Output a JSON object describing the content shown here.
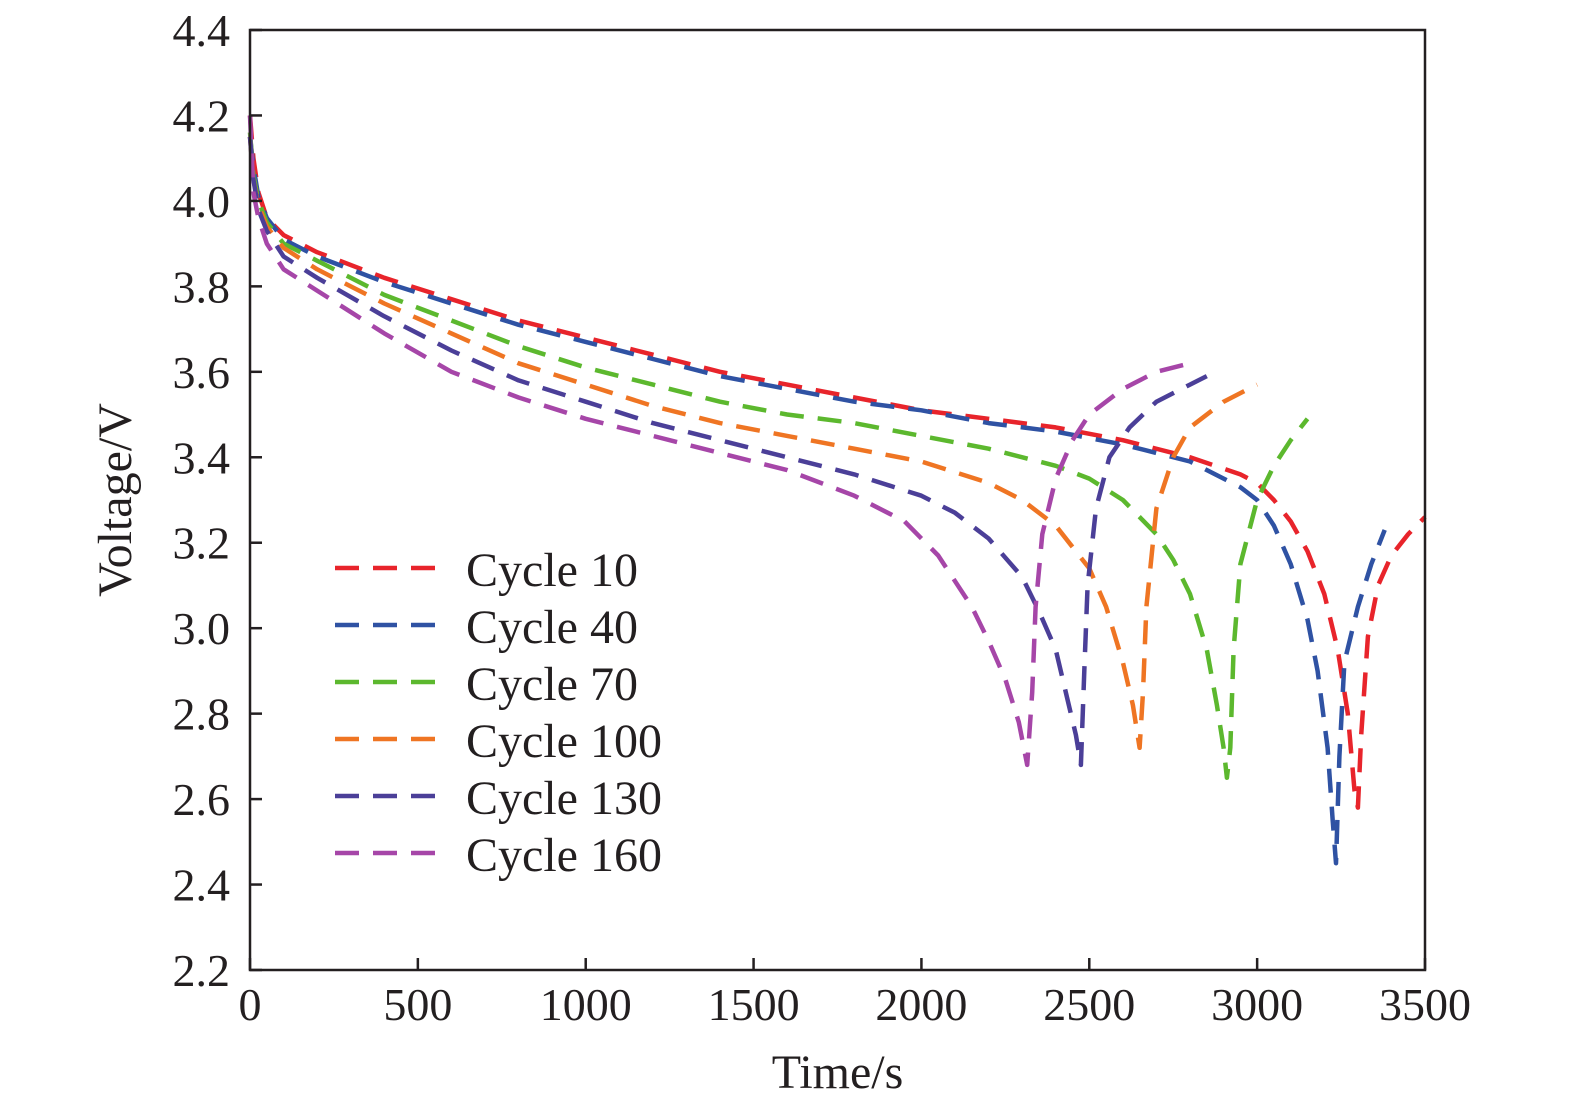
{
  "chart_data": {
    "type": "line",
    "xlabel": "Time/s",
    "ylabel": "Voltage/V",
    "xlim": [
      0,
      3500
    ],
    "ylim": [
      2.2,
      4.4
    ],
    "xticks": [
      0,
      500,
      1000,
      1500,
      2000,
      2500,
      3000,
      3500
    ],
    "xtick_labels": [
      "0",
      "500",
      "1000",
      "1500",
      "2000",
      "2500",
      "3000",
      "3500"
    ],
    "yticks": [
      2.2,
      2.4,
      2.6,
      2.8,
      3.0,
      3.2,
      3.4,
      3.6,
      3.8,
      4.0,
      4.2,
      4.4
    ],
    "ytick_labels": [
      "2.2",
      "2.4",
      "2.6",
      "2.8",
      "3.0",
      "3.2",
      "3.4",
      "3.6",
      "3.8",
      "4.0",
      "4.2",
      "4.4"
    ],
    "grid": false,
    "legend_position": "lower-left",
    "line_style": "dashed",
    "series": [
      {
        "name": "Cycle 10",
        "color": "#e8242b",
        "x": [
          0,
          10,
          25,
          50,
          100,
          200,
          400,
          600,
          800,
          1000,
          1200,
          1400,
          1600,
          1800,
          2000,
          2200,
          2400,
          2600,
          2800,
          2950,
          3000,
          3050,
          3100,
          3150,
          3200,
          3240,
          3270,
          3290,
          3300,
          3310,
          3330,
          3360,
          3400,
          3450,
          3500
        ],
        "y": [
          4.2,
          4.1,
          4.02,
          3.96,
          3.92,
          3.88,
          3.82,
          3.77,
          3.72,
          3.68,
          3.64,
          3.6,
          3.57,
          3.54,
          3.51,
          3.49,
          3.47,
          3.44,
          3.4,
          3.36,
          3.34,
          3.3,
          3.25,
          3.18,
          3.08,
          2.95,
          2.8,
          2.62,
          2.58,
          2.75,
          2.98,
          3.1,
          3.17,
          3.22,
          3.26
        ]
      },
      {
        "name": "Cycle 40",
        "color": "#2f52a3",
        "x": [
          0,
          10,
          25,
          50,
          100,
          200,
          400,
          600,
          800,
          1000,
          1200,
          1400,
          1600,
          1800,
          2000,
          2200,
          2400,
          2600,
          2800,
          2950,
          3000,
          3050,
          3100,
          3150,
          3180,
          3210,
          3225,
          3235,
          3245,
          3260,
          3300,
          3340,
          3380
        ],
        "y": [
          4.15,
          4.08,
          4.01,
          3.96,
          3.91,
          3.87,
          3.81,
          3.76,
          3.71,
          3.67,
          3.63,
          3.59,
          3.56,
          3.53,
          3.51,
          3.48,
          3.46,
          3.43,
          3.39,
          3.33,
          3.3,
          3.24,
          3.15,
          3.02,
          2.9,
          2.72,
          2.55,
          2.45,
          2.7,
          2.92,
          3.05,
          3.15,
          3.23
        ]
      },
      {
        "name": "Cycle 70",
        "color": "#5cb82e",
        "x": [
          0,
          10,
          25,
          50,
          100,
          200,
          400,
          600,
          800,
          1000,
          1200,
          1400,
          1600,
          1800,
          2000,
          2200,
          2400,
          2500,
          2600,
          2700,
          2750,
          2800,
          2850,
          2880,
          2900,
          2910,
          2920,
          2930,
          2950,
          3000,
          3050,
          3100,
          3150
        ],
        "y": [
          4.16,
          4.06,
          4.0,
          3.95,
          3.9,
          3.86,
          3.78,
          3.72,
          3.66,
          3.61,
          3.57,
          3.53,
          3.5,
          3.48,
          3.45,
          3.42,
          3.38,
          3.35,
          3.3,
          3.22,
          3.16,
          3.08,
          2.95,
          2.82,
          2.72,
          2.65,
          2.72,
          2.95,
          3.15,
          3.3,
          3.38,
          3.44,
          3.49
        ]
      },
      {
        "name": "Cycle 100",
        "color": "#ef7523",
        "x": [
          0,
          10,
          25,
          50,
          100,
          200,
          400,
          600,
          800,
          1000,
          1200,
          1400,
          1600,
          1800,
          2000,
          2200,
          2300,
          2400,
          2500,
          2550,
          2600,
          2630,
          2650,
          2660,
          2670,
          2700,
          2750,
          2800,
          2900,
          3000
        ],
        "y": [
          4.15,
          4.05,
          3.99,
          3.94,
          3.89,
          3.84,
          3.76,
          3.69,
          3.62,
          3.57,
          3.52,
          3.48,
          3.45,
          3.42,
          3.39,
          3.34,
          3.3,
          3.24,
          3.14,
          3.05,
          2.92,
          2.82,
          2.72,
          2.85,
          3.05,
          3.28,
          3.4,
          3.47,
          3.53,
          3.57
        ]
      },
      {
        "name": "Cycle 130",
        "color": "#4b3f98",
        "x": [
          0,
          10,
          25,
          50,
          100,
          200,
          400,
          600,
          800,
          1000,
          1200,
          1400,
          1600,
          1800,
          2000,
          2100,
          2200,
          2300,
          2350,
          2400,
          2430,
          2460,
          2475,
          2485,
          2495,
          2520,
          2560,
          2620,
          2700,
          2800,
          2850
        ],
        "y": [
          4.15,
          4.05,
          3.98,
          3.93,
          3.87,
          3.82,
          3.73,
          3.65,
          3.58,
          3.53,
          3.48,
          3.44,
          3.4,
          3.36,
          3.31,
          3.27,
          3.21,
          3.12,
          3.04,
          2.95,
          2.85,
          2.75,
          2.68,
          2.9,
          3.1,
          3.28,
          3.4,
          3.47,
          3.53,
          3.57,
          3.59
        ]
      },
      {
        "name": "Cycle 160",
        "color": "#a646a8",
        "x": [
          0,
          10,
          25,
          50,
          100,
          200,
          400,
          600,
          800,
          1000,
          1200,
          1400,
          1600,
          1800,
          1950,
          2050,
          2150,
          2200,
          2250,
          2290,
          2315,
          2330,
          2340,
          2360,
          2400,
          2450,
          2500,
          2600,
          2700,
          2800
        ],
        "y": [
          4.2,
          4.02,
          3.96,
          3.9,
          3.84,
          3.79,
          3.69,
          3.6,
          3.54,
          3.49,
          3.45,
          3.41,
          3.37,
          3.31,
          3.25,
          3.17,
          3.05,
          2.97,
          2.88,
          2.78,
          2.68,
          2.85,
          3.05,
          3.22,
          3.35,
          3.44,
          3.5,
          3.56,
          3.6,
          3.62
        ]
      }
    ]
  }
}
